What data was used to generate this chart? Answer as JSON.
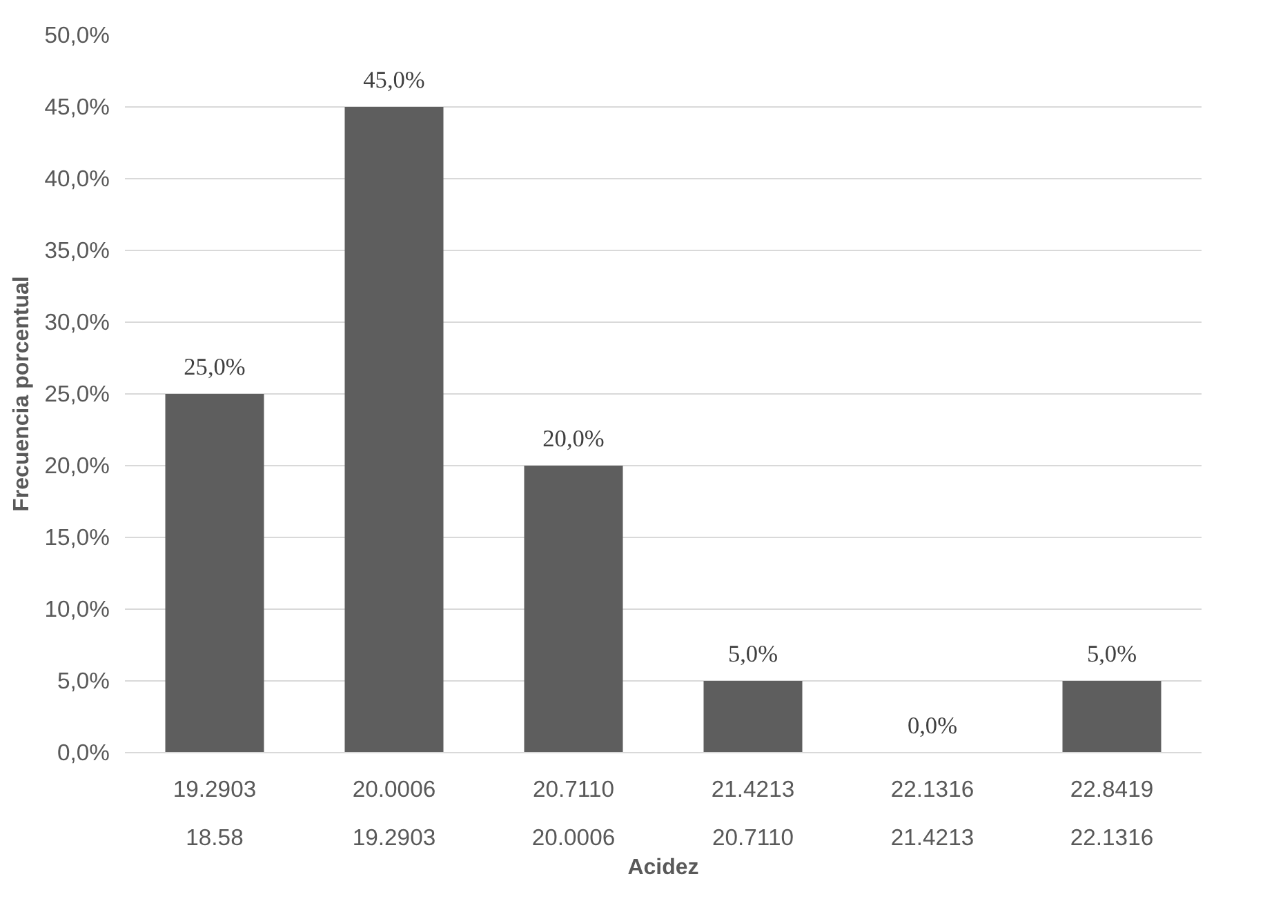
{
  "chart_data": {
    "type": "bar",
    "xlabel": "Acidez",
    "ylabel": "Frecuencia porcentual",
    "categories": [
      "19.2903\n18.58",
      "20.0006\n19.2903",
      "20.7110\n20.0006",
      "21.4213\n20.7110",
      "22.1316\n21.4213",
      "22.8419\n22.1316"
    ],
    "values": [
      25,
      45,
      20,
      5,
      0,
      5
    ],
    "value_labels": [
      "25,0%",
      "45,0%",
      "20,0%",
      "5,0%",
      "0,0%",
      "5,0%"
    ],
    "color": "#5e5e5e",
    "ylim": [
      0,
      50
    ],
    "yticks": [
      {
        "value": 0,
        "label": "0,0%"
      },
      {
        "value": 5,
        "label": "5,0%"
      },
      {
        "value": 10,
        "label": "10,0%"
      },
      {
        "value": 15,
        "label": "15,0%"
      },
      {
        "value": 20,
        "label": "20,0%"
      },
      {
        "value": 25,
        "label": "25,0%"
      },
      {
        "value": 30,
        "label": "30,0%"
      },
      {
        "value": 35,
        "label": "35,0%"
      },
      {
        "value": 40,
        "label": "40,0%"
      },
      {
        "value": 45,
        "label": "45,0%"
      },
      {
        "value": 50,
        "label": "50,0%"
      }
    ],
    "grid": "y"
  }
}
